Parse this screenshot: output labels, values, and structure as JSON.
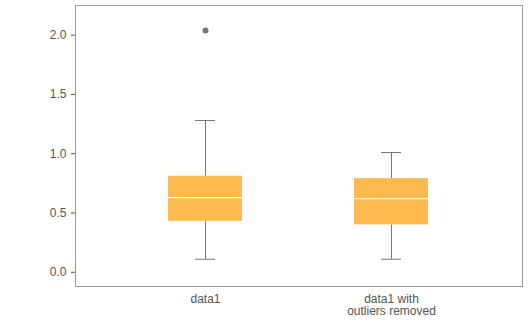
{
  "chart_data": {
    "type": "box",
    "categories": [
      "data1",
      "data1 with\noutliers removed"
    ],
    "boxes": [
      {
        "whisker_low": 0.11,
        "q1": 0.43,
        "median": 0.63,
        "q3": 0.81,
        "whisker_high": 1.28,
        "outliers": [
          2.04
        ]
      },
      {
        "whisker_low": 0.11,
        "q1": 0.4,
        "median": 0.62,
        "q3": 0.79,
        "whisker_high": 1.01,
        "outliers": []
      }
    ],
    "color": "#fdb94e",
    "ylim": [
      -0.12,
      2.25
    ],
    "yticks": [
      {
        "value": 0,
        "label": "0.0"
      },
      {
        "value": 0.5,
        "label": "0.5"
      },
      {
        "value": 1,
        "label": "1.0"
      },
      {
        "value": 1.5,
        "label": "1.5"
      },
      {
        "value": 2,
        "label": "2.0"
      }
    ],
    "grid": false
  }
}
